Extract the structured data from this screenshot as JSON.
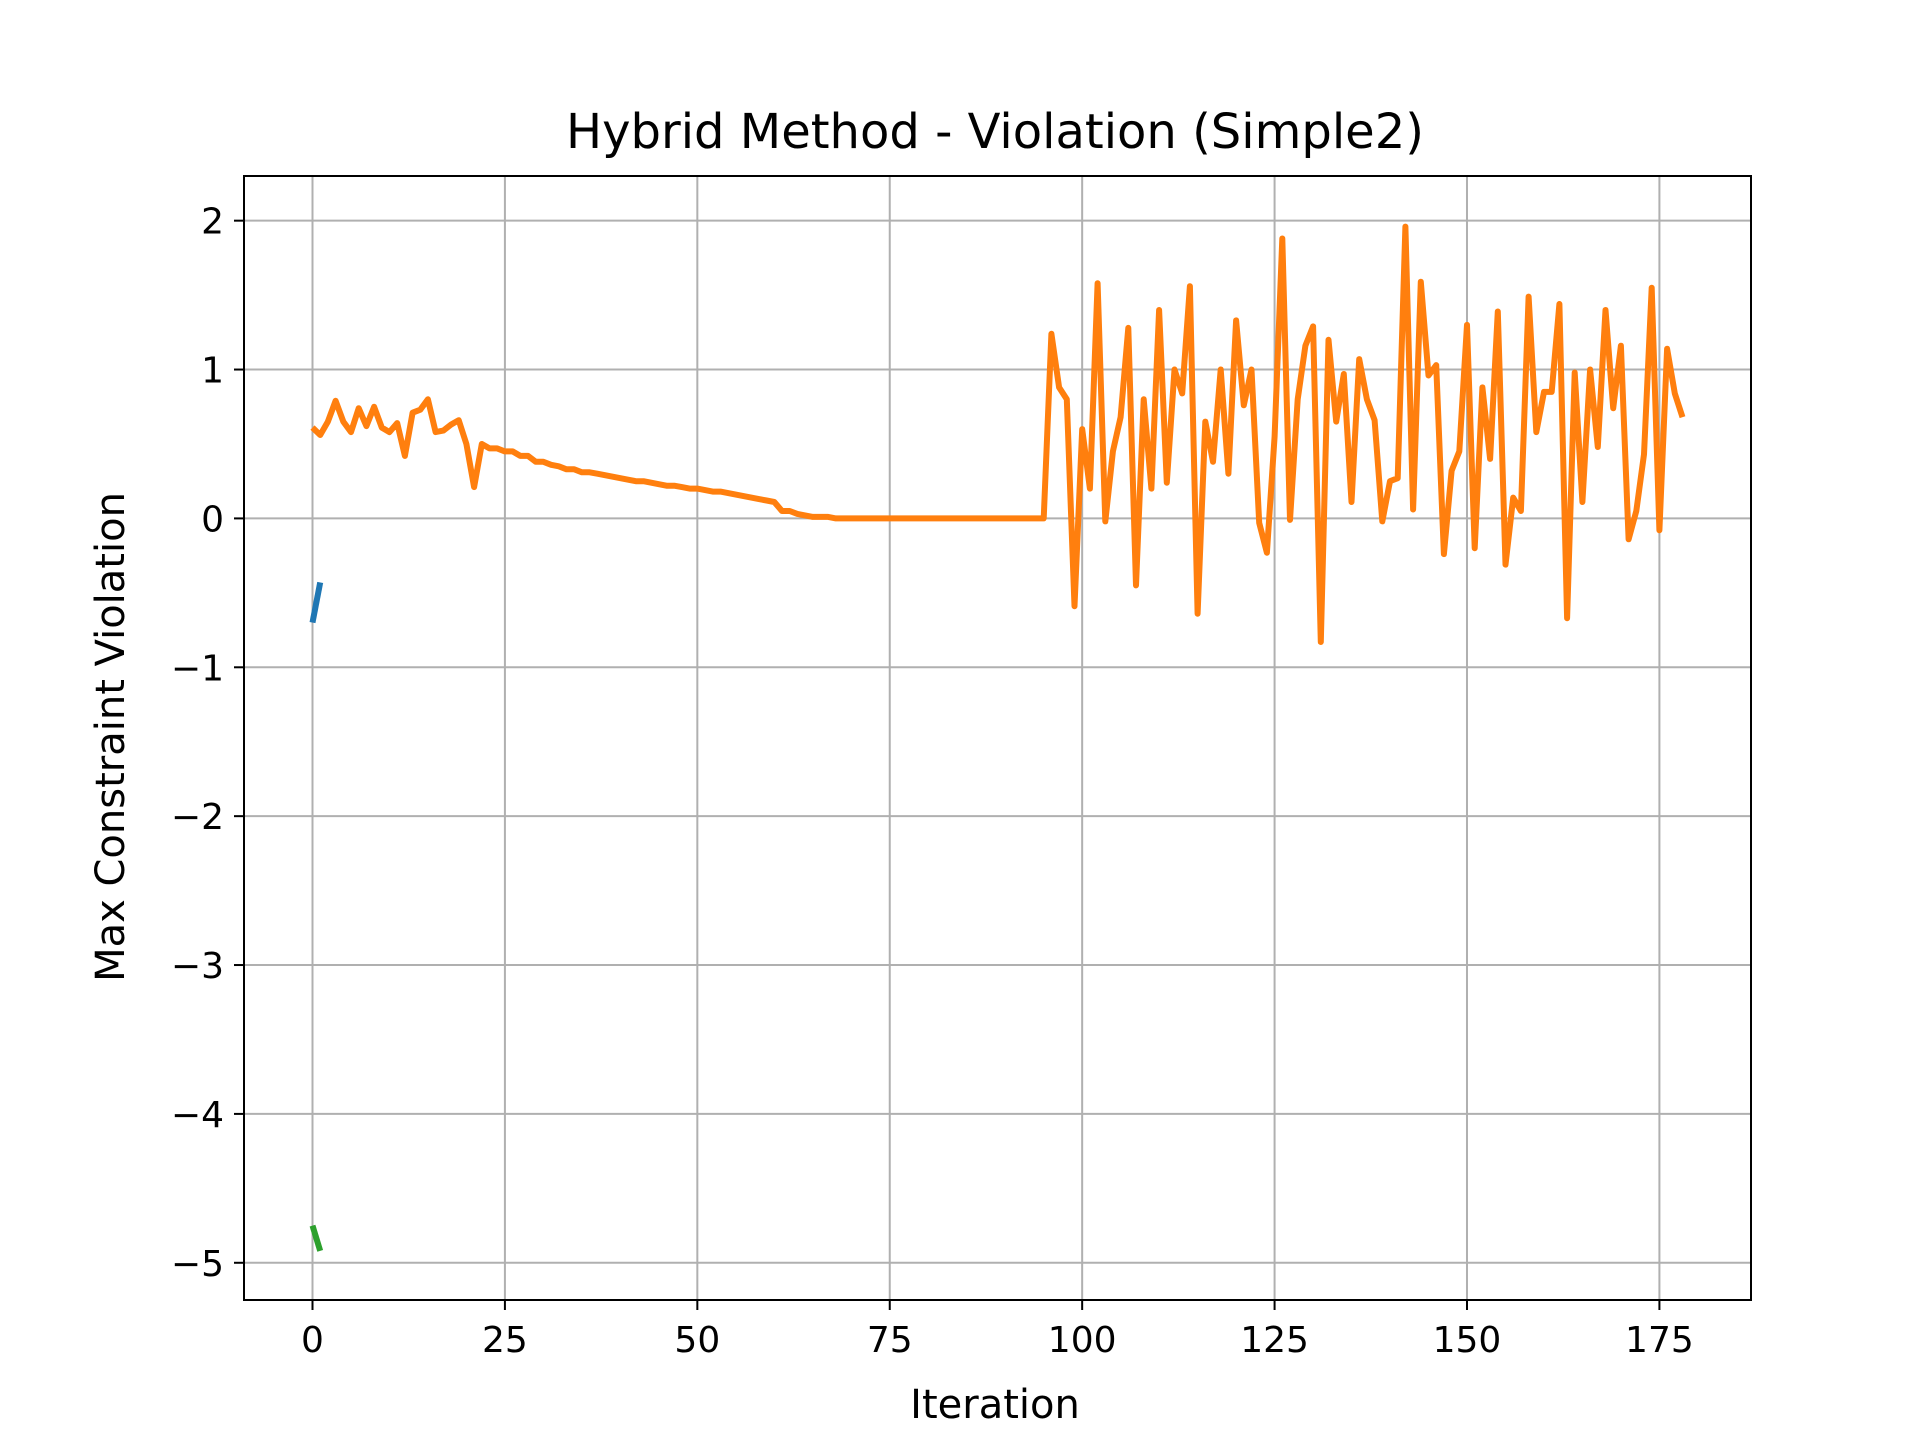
{
  "chart_data": {
    "type": "line",
    "title": "Hybrid Method - Violation (Simple2)",
    "xlabel": "Iteration",
    "ylabel": "Max Constraint Violation",
    "xlim": [
      -8.9,
      186.9
    ],
    "ylim": [
      -5.25,
      2.3
    ],
    "xticks": [
      0,
      25,
      50,
      75,
      100,
      125,
      150,
      175
    ],
    "xtick_labels": [
      "0",
      "25",
      "50",
      "75",
      "100",
      "125",
      "150",
      "175"
    ],
    "yticks": [
      2,
      1,
      0,
      -1,
      -2,
      -3,
      -4,
      -5
    ],
    "ytick_labels": [
      "2",
      "1",
      "0",
      "−1",
      "−2",
      "−3",
      "−4",
      "−5"
    ],
    "grid": true,
    "legend": "none",
    "series": [
      {
        "color": "#1f77b4",
        "x": [
          0,
          1
        ],
        "y": [
          -0.7,
          -0.43
        ]
      },
      {
        "color": "#ff7f0e",
        "x": [
          0,
          1,
          2,
          3,
          4,
          5,
          6,
          7,
          8,
          9,
          10,
          11,
          12,
          13,
          14,
          15,
          16,
          17,
          18,
          19,
          20,
          21,
          22,
          23,
          24,
          25,
          26,
          27,
          28,
          29,
          30,
          31,
          32,
          33,
          34,
          35,
          36,
          37,
          38,
          39,
          40,
          41,
          42,
          43,
          44,
          45,
          46,
          47,
          48,
          49,
          50,
          51,
          52,
          53,
          54,
          55,
          56,
          57,
          58,
          59,
          60,
          61,
          62,
          63,
          64,
          65,
          66,
          67,
          68,
          69,
          70,
          71,
          72,
          73,
          74,
          75,
          76,
          77,
          78,
          79,
          80,
          81,
          82,
          83,
          84,
          85,
          86,
          87,
          88,
          89,
          90,
          91,
          92,
          93,
          94,
          95,
          96,
          97,
          98,
          99,
          100,
          101,
          102,
          103,
          104,
          105,
          106,
          107,
          108,
          109,
          110,
          111,
          112,
          113,
          114,
          115,
          116,
          117,
          118,
          119,
          120,
          121,
          122,
          123,
          124,
          125,
          126,
          127,
          128,
          129,
          130,
          131,
          132,
          133,
          134,
          135,
          136,
          137,
          138,
          139,
          140,
          141,
          142,
          143,
          144,
          145,
          146,
          147,
          148,
          149,
          150,
          151,
          152,
          153,
          154,
          155,
          156,
          157,
          158,
          159,
          160,
          161,
          162,
          163,
          164,
          165,
          166,
          167,
          168,
          169,
          170,
          171,
          172,
          173,
          174,
          175,
          176,
          177,
          178
        ],
        "y": [
          0.61,
          0.56,
          0.65,
          0.79,
          0.65,
          0.58,
          0.74,
          0.62,
          0.75,
          0.61,
          0.58,
          0.64,
          0.42,
          0.71,
          0.73,
          0.8,
          0.58,
          0.59,
          0.63,
          0.66,
          0.5,
          0.21,
          0.5,
          0.47,
          0.47,
          0.45,
          0.45,
          0.42,
          0.42,
          0.38,
          0.38,
          0.36,
          0.35,
          0.33,
          0.33,
          0.31,
          0.31,
          0.3,
          0.29,
          0.28,
          0.27,
          0.26,
          0.25,
          0.25,
          0.24,
          0.23,
          0.22,
          0.22,
          0.21,
          0.2,
          0.2,
          0.19,
          0.18,
          0.18,
          0.17,
          0.16,
          0.15,
          0.14,
          0.13,
          0.12,
          0.11,
          0.05,
          0.05,
          0.03,
          0.02,
          0.01,
          0.01,
          0.01,
          0.0,
          0.0,
          0.0,
          0.0,
          0.0,
          0.0,
          0.0,
          0.0,
          0.0,
          0.0,
          0.0,
          0.0,
          0.0,
          0.0,
          0.0,
          0.0,
          0.0,
          0.0,
          0.0,
          0.0,
          0.0,
          0.0,
          0.0,
          0.0,
          0.0,
          0.0,
          0.0,
          0.0,
          1.24,
          0.88,
          0.8,
          -0.59,
          0.6,
          0.2,
          1.58,
          -0.02,
          0.45,
          0.68,
          1.28,
          -0.45,
          0.8,
          0.2,
          1.4,
          0.24,
          1.0,
          0.84,
          1.56,
          -0.64,
          0.65,
          0.38,
          1.0,
          0.3,
          1.33,
          0.76,
          1.0,
          -0.03,
          -0.23,
          0.55,
          1.88,
          -0.01,
          0.8,
          1.16,
          1.29,
          -0.83,
          1.2,
          0.65,
          0.97,
          0.11,
          1.07,
          0.8,
          0.66,
          -0.02,
          0.25,
          0.27,
          1.96,
          0.06,
          1.59,
          0.96,
          1.03,
          -0.24,
          0.32,
          0.45,
          1.3,
          -0.2,
          0.88,
          0.4,
          1.39,
          -0.31,
          0.14,
          0.05,
          1.49,
          0.58,
          0.85,
          0.85,
          1.44,
          -0.67,
          0.98,
          0.11,
          1.0,
          0.48,
          1.4,
          0.74,
          1.16,
          -0.14,
          0.05,
          0.43,
          1.55,
          -0.08,
          1.14,
          0.84,
          0.68
        ]
      },
      {
        "color": "#2ca02c",
        "x": [
          0,
          1
        ],
        "y": [
          -4.75,
          -4.92
        ]
      }
    ]
  }
}
